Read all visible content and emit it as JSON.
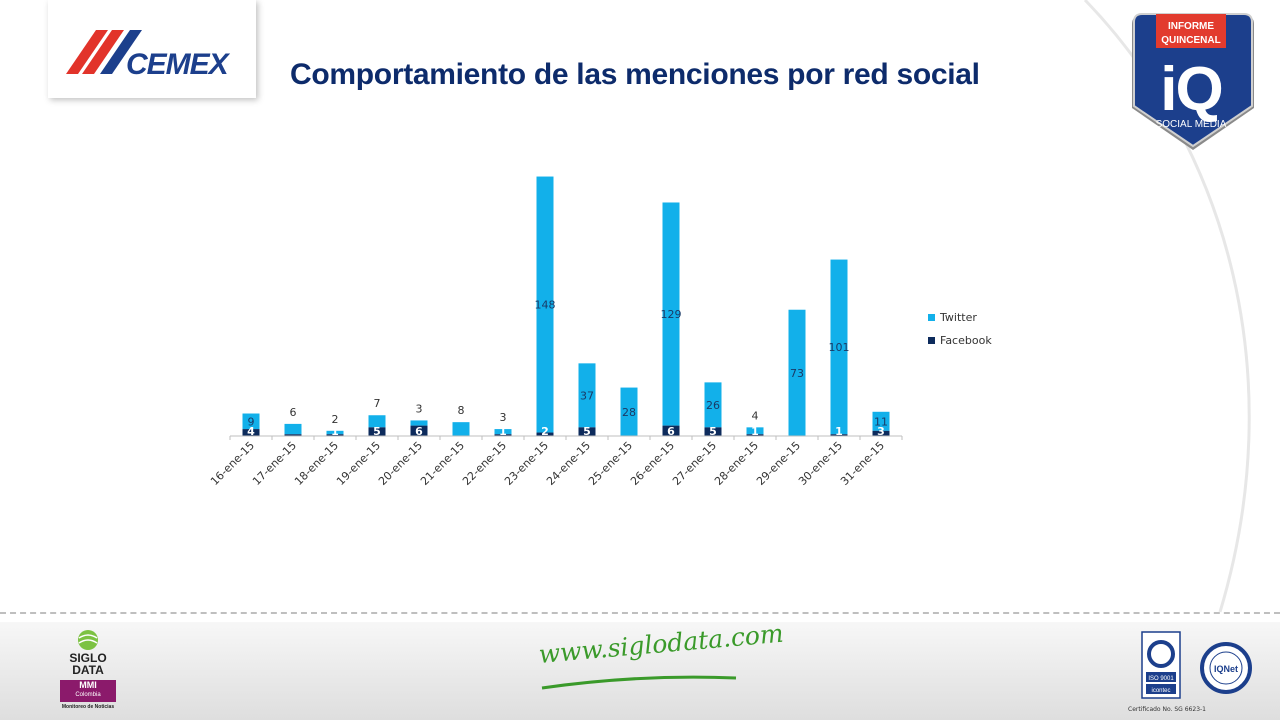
{
  "header": {
    "title": "Comportamiento de las menciones por red social",
    "brand_logo": "CEMEX",
    "badge": {
      "line1": "INFORME",
      "line2": "QUINCENAL",
      "mark": "iQ",
      "subtitle": "SOCIAL MEDIA"
    }
  },
  "colors": {
    "title": "#0d2b6b",
    "twitter": "#12b0ea",
    "facebook": "#0d2b5c",
    "badge_red": "#e23b2e",
    "badge_blue": "#1c3f8c",
    "footer_green": "#3a9a2a"
  },
  "chart_data": {
    "type": "bar",
    "stacked": true,
    "categories": [
      "16-ene-15",
      "17-ene-15",
      "18-ene-15",
      "19-ene-15",
      "20-ene-15",
      "21-ene-15",
      "22-ene-15",
      "23-ene-15",
      "24-ene-15",
      "25-ene-15",
      "26-ene-15",
      "27-ene-15",
      "28-ene-15",
      "29-ene-15",
      "30-ene-15",
      "31-ene-15"
    ],
    "series": [
      {
        "name": "Facebook",
        "values": [
          4,
          1,
          1,
          5,
          6,
          0,
          1,
          2,
          5,
          0,
          6,
          5,
          1,
          0,
          1,
          3
        ]
      },
      {
        "name": "Twitter",
        "values": [
          9,
          6,
          2,
          7,
          3,
          8,
          3,
          148,
          37,
          28,
          129,
          26,
          4,
          73,
          101,
          11
        ]
      }
    ],
    "facebook_labels": [
      "4",
      "",
      "1",
      "5",
      "6",
      "",
      "1",
      "2",
      "5",
      "",
      "6",
      "5",
      "1",
      "",
      "1",
      "3"
    ],
    "twitter_labels": [
      "9",
      "6",
      "2",
      "7",
      "3",
      "8",
      "3",
      "148",
      "37",
      "28",
      "129",
      "26",
      "4",
      "73",
      "101",
      "11"
    ],
    "legend": [
      "Twitter",
      "Facebook"
    ],
    "legend_position": "right",
    "title": "",
    "xlabel": "",
    "ylabel": "",
    "ylim": [
      0,
      155
    ],
    "grid": false
  },
  "footer": {
    "siglo_title": "SIGLO DATA",
    "siglo_mmi": "MMI",
    "siglo_colombia": "Colombia",
    "siglo_sub": "Monitoreo de Noticias",
    "website": "www.siglodata.com",
    "cert_iso": "ISO 9001",
    "cert_icontec": "icontec",
    "cert_iqnet": "IQNet",
    "cert_text": "Certificado No. SG 6623-1"
  }
}
